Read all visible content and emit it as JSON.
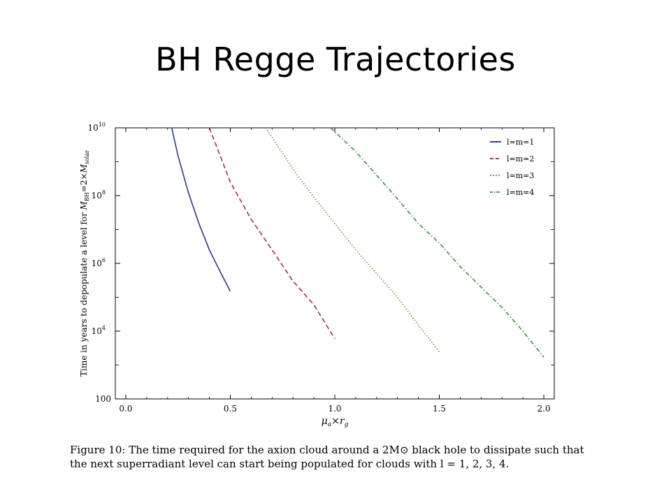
{
  "slide": {
    "title": "BH Regge Trajectories"
  },
  "caption": {
    "lines": [
      "Figure 10:  The time required for the axion cloud around a 2M⊙ black hole to dissipate such that",
      "the next superradiant level can start being populated for clouds with l = 1, 2, 3, 4."
    ]
  },
  "chart_data": {
    "type": "line",
    "xlabel": "μₐ×r_g",
    "ylabel": "Time in years to depopulate  a level for M_BH=2×M_solar",
    "xlim": [
      -0.05,
      2.05
    ],
    "ylim": [
      100,
      10000000000
    ],
    "yscale": "log",
    "xticks": [
      "0.0",
      "0.5",
      "1.0",
      "1.5",
      "2.0"
    ],
    "yticks": [
      "100",
      "10^4",
      "10^6",
      "10^8",
      "10^10"
    ],
    "legend_position": "top-right",
    "grid": false,
    "series": [
      {
        "name": "l=m=1",
        "color": "#3b3f8f",
        "dash": "solid",
        "x": [
          0.22,
          0.25,
          0.3,
          0.35,
          0.4,
          0.45,
          0.5
        ],
        "y": [
          10000000000,
          1500000000,
          120000000,
          15000000,
          2500000,
          600000,
          150000
        ]
      },
      {
        "name": "l=m=2",
        "color": "#a8326b",
        "dash": "dashed",
        "x": [
          0.4,
          0.5,
          0.6,
          0.7,
          0.8,
          0.9,
          1.0
        ],
        "y": [
          10000000000,
          250000000,
          20000000,
          2500000,
          300000,
          60000,
          6000
        ]
      },
      {
        "name": "l=m=3",
        "color": "#a08a3c",
        "dash": "dotted",
        "x": [
          0.67,
          0.8,
          0.9,
          1.0,
          1.1,
          1.2,
          1.3,
          1.4,
          1.5
        ],
        "y": [
          10000000000,
          600000000,
          90000000,
          15000000,
          2500000,
          500000,
          100000,
          15000,
          2500
        ]
      },
      {
        "name": "l=m=4",
        "color": "#3a9a4c",
        "dash": "dashdot",
        "x": [
          0.98,
          1.1,
          1.2,
          1.3,
          1.4,
          1.5,
          1.6,
          1.7,
          1.8,
          1.9,
          2.0
        ],
        "y": [
          10000000000,
          2000000000,
          400000000,
          80000000,
          15000000,
          4000000,
          800000,
          200000,
          50000,
          10000,
          1700
        ]
      }
    ]
  }
}
